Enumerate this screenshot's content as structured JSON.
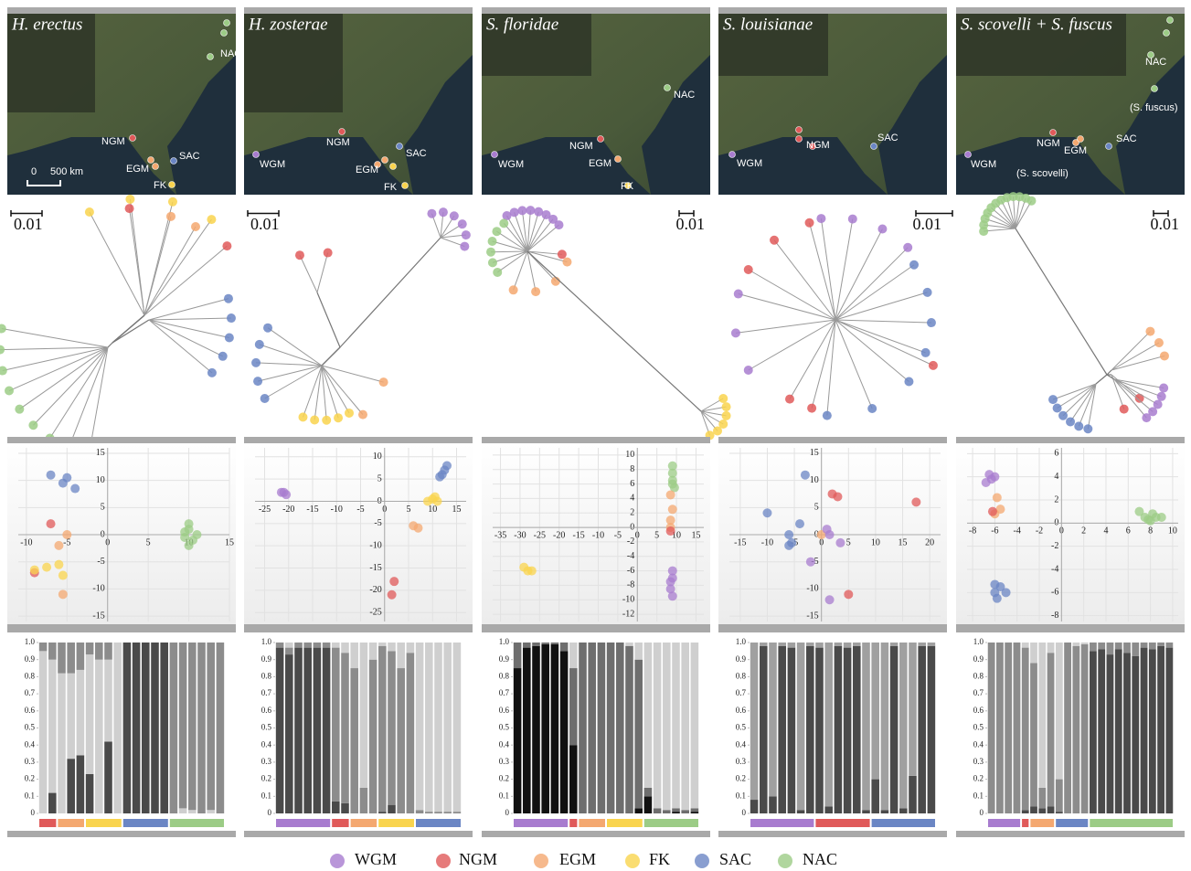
{
  "panels": [
    {
      "map": {
        "title": "H. erectus",
        "labels": [
          "NAC",
          "NGM",
          "EGM",
          "SAC",
          "FK",
          "0",
          "500 km"
        ]
      },
      "tree": {
        "scale": "0.01"
      }
    },
    {
      "map": {
        "title": "H. zosterae",
        "labels": [
          "WGM",
          "NGM",
          "EGM",
          "SAC",
          "FK"
        ]
      },
      "tree": {
        "scale": "0.01"
      }
    },
    {
      "map": {
        "title": "S. floridae",
        "labels": [
          "NAC",
          "NGM",
          "WGM",
          "EGM",
          "FK"
        ]
      },
      "tree": {
        "scale": "0.01"
      }
    },
    {
      "map": {
        "title": "S. louisianae",
        "labels": [
          "NGM",
          "SAC",
          "WGM"
        ]
      },
      "tree": {
        "scale": "0.01"
      }
    },
    {
      "map": {
        "title": "S. scovelli + S. fuscus",
        "labels": [
          "NAC",
          "(S. fuscus)",
          "NGM",
          "EGM",
          "SAC",
          "WGM",
          "(S. scovelli)"
        ]
      },
      "tree": {
        "scale": "0.01"
      }
    }
  ],
  "chart_data": [
    {
      "type": "scatter",
      "grid": true,
      "xlim": [
        -11,
        15
      ],
      "ylim": [
        -16,
        16
      ],
      "xticks": [
        -10,
        -5,
        0,
        5,
        10,
        15
      ],
      "yticks": [
        -15,
        -10,
        -5,
        0,
        5,
        10,
        15
      ],
      "series": [
        {
          "name": "SAC",
          "color": "#6b86c4",
          "x": [
            -7,
            -5.5,
            -5,
            -4
          ],
          "y": [
            11,
            9.5,
            10.5,
            8.5
          ]
        },
        {
          "name": "NGM",
          "color": "#e05a5a",
          "x": [
            -7,
            -9
          ],
          "y": [
            2,
            -7
          ]
        },
        {
          "name": "EGM",
          "color": "#f4a870",
          "x": [
            -5,
            -6,
            -5.5
          ],
          "y": [
            0,
            -2,
            -11
          ]
        },
        {
          "name": "FK",
          "color": "#f9d44e",
          "x": [
            -9,
            -7.5,
            -6,
            -5.5
          ],
          "y": [
            -6.5,
            -6,
            -5.5,
            -7.5
          ]
        },
        {
          "name": "NAC",
          "color": "#9ccc86",
          "x": [
            10,
            10,
            9.5,
            10.5,
            10,
            11,
            9.5
          ],
          "y": [
            1,
            2,
            -0.5,
            -1,
            -2,
            0,
            0.5
          ]
        }
      ]
    },
    {
      "type": "scatter",
      "grid": true,
      "xlim": [
        -27,
        17
      ],
      "ylim": [
        -27,
        12
      ],
      "xticks": [
        -25,
        -20,
        -15,
        -10,
        -5,
        0,
        5,
        10,
        15
      ],
      "yticks": [
        -25,
        -20,
        -15,
        -10,
        -5,
        0,
        5,
        10
      ],
      "series": [
        {
          "name": "WGM",
          "color": "#a87ccf",
          "x": [
            -21,
            -20.5,
            -21.5
          ],
          "y": [
            2,
            1.5,
            2
          ]
        },
        {
          "name": "SAC",
          "color": "#6b86c4",
          "x": [
            12,
            12.5,
            13,
            11.5
          ],
          "y": [
            6,
            7,
            8,
            5.5
          ]
        },
        {
          "name": "FK",
          "color": "#f9d44e",
          "x": [
            9,
            10,
            11,
            10.5
          ],
          "y": [
            0,
            0.5,
            0,
            1
          ]
        },
        {
          "name": "EGM",
          "color": "#f4a870",
          "x": [
            6,
            7
          ],
          "y": [
            -5.5,
            -6
          ]
        },
        {
          "name": "NGM",
          "color": "#e05a5a",
          "x": [
            2,
            1.5
          ],
          "y": [
            -18,
            -21
          ]
        }
      ]
    },
    {
      "type": "scatter",
      "grid": true,
      "xlim": [
        -37,
        17
      ],
      "ylim": [
        -13,
        11
      ],
      "xticks": [
        -35,
        -30,
        -25,
        -20,
        -15,
        -10,
        -5,
        0,
        5,
        10,
        15
      ],
      "yticks": [
        -12,
        -10,
        -8,
        -6,
        -4,
        -2,
        0,
        2,
        4,
        6,
        8,
        10
      ],
      "series": [
        {
          "name": "FK",
          "color": "#f9d44e",
          "x": [
            -29,
            -28,
            -27
          ],
          "y": [
            -5.5,
            -6,
            -6
          ]
        },
        {
          "name": "NAC",
          "color": "#9ccc86",
          "x": [
            9,
            9,
            9,
            9.5,
            9
          ],
          "y": [
            8.5,
            7.5,
            6.5,
            5.5,
            6
          ]
        },
        {
          "name": "EGM",
          "color": "#f4a870",
          "x": [
            9,
            8.5,
            8.5,
            8.5
          ],
          "y": [
            2.5,
            4.5,
            1,
            0
          ]
        },
        {
          "name": "NGM",
          "color": "#e05a5a",
          "x": [
            8.5
          ],
          "y": [
            -0.5
          ]
        },
        {
          "name": "WGM",
          "color": "#a87ccf",
          "x": [
            9,
            8.5,
            8.5,
            9,
            9
          ],
          "y": [
            -6,
            -7.5,
            -8.5,
            -9.5,
            -7
          ]
        }
      ]
    },
    {
      "type": "scatter",
      "grid": true,
      "xlim": [
        -17,
        22
      ],
      "ylim": [
        -16,
        16
      ],
      "xticks": [
        -15,
        -10,
        -5,
        0,
        5,
        10,
        15,
        20
      ],
      "yticks": [
        -15,
        -10,
        -5,
        0,
        5,
        10,
        15
      ],
      "series": [
        {
          "name": "SAC",
          "color": "#6b86c4",
          "x": [
            -3,
            -10,
            -4,
            -6,
            -5.5,
            -6
          ],
          "y": [
            11,
            4,
            2,
            0,
            -1.5,
            -2
          ]
        },
        {
          "name": "NGM",
          "color": "#e05a5a",
          "x": [
            2,
            3,
            17.5,
            5
          ],
          "y": [
            7.5,
            7,
            6,
            -11
          ]
        },
        {
          "name": "EGM",
          "color": "#f4a870",
          "x": [
            0
          ],
          "y": [
            0
          ]
        },
        {
          "name": "WGM",
          "color": "#a87ccf",
          "x": [
            1,
            1.5,
            3.5,
            -2,
            1.5
          ],
          "y": [
            1,
            0,
            -1.5,
            -5,
            -12
          ]
        }
      ]
    },
    {
      "type": "scatter",
      "grid": true,
      "xlim": [
        -8.5,
        10.5
      ],
      "ylim": [
        -8.5,
        6.5
      ],
      "xticks": [
        -8,
        -6,
        -4,
        -2,
        0,
        2,
        4,
        6,
        8,
        10
      ],
      "yticks": [
        -8,
        -6,
        -4,
        -2,
        0,
        2,
        4,
        6
      ],
      "series": [
        {
          "name": "WGM",
          "color": "#a87ccf",
          "x": [
            -6.5,
            -6.3,
            -6.8,
            -6
          ],
          "y": [
            4.2,
            3.8,
            3.5,
            4
          ]
        },
        {
          "name": "EGM",
          "color": "#f4a870",
          "x": [
            -5.8,
            -5.5,
            -6
          ],
          "y": [
            2.2,
            1.2,
            0.8
          ]
        },
        {
          "name": "NGM",
          "color": "#e05a5a",
          "x": [
            -6.2
          ],
          "y": [
            1
          ]
        },
        {
          "name": "SAC",
          "color": "#6b86c4",
          "x": [
            -6,
            -5.5,
            -5,
            -5.8,
            -6
          ],
          "y": [
            -5.3,
            -5.5,
            -6,
            -6.5,
            -6
          ]
        },
        {
          "name": "NAC",
          "color": "#9ccc86",
          "x": [
            7,
            7.5,
            8,
            8.5,
            9,
            8.2,
            7.8
          ],
          "y": [
            1,
            0.5,
            0.2,
            0.5,
            0.5,
            0.8,
            0.3
          ]
        }
      ]
    },
    {
      "type": "bar",
      "ylim": [
        0,
        1
      ],
      "yticks": [
        0,
        0.1,
        0.2,
        0.3,
        0.4,
        0.5,
        0.6,
        0.7,
        0.8,
        0.9,
        {
          "value": 1,
          "label": "1.0"
        }
      ],
      "series": [
        {
          "color": "#4a4a4a",
          "values": [
            0,
            0.12,
            0,
            0.32,
            0.34,
            0.23,
            0,
            0.42,
            0,
            1,
            1,
            1,
            1,
            1,
            0,
            0,
            0,
            0,
            0,
            0
          ]
        },
        {
          "color": "#cfcfcf",
          "values": [
            0.95,
            0.78,
            0.82,
            0.5,
            0.5,
            0.7,
            0.9,
            0.48,
            1,
            0,
            0,
            0,
            0,
            0,
            0,
            0.03,
            0.02,
            0,
            0.02,
            0
          ]
        },
        {
          "color": "#8c8c8c",
          "values": [
            0.05,
            0.1,
            0.18,
            0.18,
            0.16,
            0.07,
            0.1,
            0.1,
            0,
            0,
            0,
            0,
            0,
            0,
            1,
            0.97,
            0.98,
            1,
            0.98,
            1
          ]
        }
      ],
      "groups": [
        {
          "name": "NGM",
          "count": 2
        },
        {
          "name": "EGM",
          "count": 3
        },
        {
          "name": "FK",
          "count": 4
        },
        {
          "name": "SAC",
          "count": 5
        },
        {
          "name": "NAC",
          "count": 6
        }
      ]
    },
    {
      "type": "bar",
      "ylim": [
        0,
        1
      ],
      "yticks": [
        0,
        0.1,
        0.2,
        0.3,
        0.4,
        0.5,
        0.6,
        0.7,
        0.8,
        0.9,
        {
          "value": 1,
          "label": "1.0"
        }
      ],
      "series": [
        {
          "color": "#4a4a4a",
          "values": [
            0.97,
            0.93,
            0.97,
            0.97,
            0.97,
            0.97,
            0.07,
            0.06,
            0,
            0,
            0,
            0.01,
            0.05,
            0,
            0,
            0,
            0,
            0,
            0,
            0
          ]
        },
        {
          "color": "#8c8c8c",
          "values": [
            0.03,
            0.04,
            0.03,
            0.03,
            0.03,
            0.03,
            0.9,
            0.88,
            0.85,
            0.15,
            0.9,
            0.97,
            0.9,
            0.85,
            0.94,
            0.02,
            0.01,
            0.01,
            0.01,
            0.01
          ]
        },
        {
          "color": "#cfcfcf",
          "values": [
            0,
            0.03,
            0,
            0,
            0,
            0,
            0.03,
            0.06,
            0.15,
            0.85,
            0.1,
            0.02,
            0.05,
            0.15,
            0.06,
            0.98,
            0.99,
            0.99,
            0.99,
            0.99
          ]
        }
      ],
      "groups": [
        {
          "name": "WGM",
          "count": 6
        },
        {
          "name": "NGM",
          "count": 2
        },
        {
          "name": "EGM",
          "count": 3
        },
        {
          "name": "FK",
          "count": 4
        },
        {
          "name": "SAC",
          "count": 5
        }
      ]
    },
    {
      "type": "bar",
      "ylim": [
        0,
        1
      ],
      "yticks": [
        0,
        0.1,
        0.2,
        0.3,
        0.4,
        0.5,
        0.6,
        0.7,
        0.8,
        0.9,
        {
          "value": 1,
          "label": "1.0"
        }
      ],
      "series": [
        {
          "color": "#111111",
          "values": [
            0.85,
            0.97,
            0.98,
            0.99,
            0.99,
            0.95,
            0.4,
            0,
            0,
            0,
            0,
            0,
            0,
            0.03,
            0.1,
            0,
            0,
            0.01,
            0,
            0.01
          ]
        },
        {
          "color": "#6e6e6e",
          "values": [
            0.15,
            0.03,
            0.02,
            0.01,
            0.01,
            0.05,
            0.45,
            1,
            1,
            1,
            1,
            1,
            0.98,
            0.87,
            0.05,
            0.03,
            0.02,
            0.02,
            0.02,
            0.02
          ]
        },
        {
          "color": "#cfcfcf",
          "values": [
            0,
            0,
            0,
            0,
            0,
            0,
            0.15,
            0,
            0,
            0,
            0,
            0,
            0.02,
            0.1,
            0.85,
            0.97,
            0.98,
            0.97,
            0.98,
            0.97
          ]
        }
      ],
      "groups": [
        {
          "name": "WGM",
          "count": 6
        },
        {
          "name": "NGM",
          "count": 1
        },
        {
          "name": "EGM",
          "count": 3
        },
        {
          "name": "FK",
          "count": 4
        },
        {
          "name": "NAC",
          "count": 6
        }
      ]
    },
    {
      "type": "bar",
      "ylim": [
        0,
        1
      ],
      "yticks": [
        0,
        0.1,
        0.2,
        0.3,
        0.4,
        0.5,
        0.6,
        0.7,
        0.8,
        0.9,
        {
          "value": 1,
          "label": "1.0"
        }
      ],
      "series": [
        {
          "color": "#4a4a4a",
          "values": [
            0.08,
            0.98,
            0.1,
            0.98,
            0.97,
            0.02,
            0.98,
            0.97,
            0.04,
            0.98,
            0.97,
            0.98,
            0.02,
            0.2,
            0.02,
            0.98,
            0.03,
            0.22,
            0.98,
            0.98
          ]
        },
        {
          "color": "#a0a0a0",
          "values": [
            0.92,
            0.02,
            0.9,
            0.02,
            0.03,
            0.98,
            0.02,
            0.03,
            0.96,
            0.02,
            0.03,
            0.02,
            0.98,
            0.8,
            0.98,
            0.02,
            0.97,
            0.78,
            0.02,
            0.02
          ]
        }
      ],
      "groups": [
        {
          "name": "WGM",
          "count": 7
        },
        {
          "name": "NGM",
          "count": 6
        },
        {
          "name": "SAC",
          "count": 7
        }
      ]
    },
    {
      "type": "bar",
      "ylim": [
        0,
        1
      ],
      "yticks": [
        0,
        0.1,
        0.2,
        0.3,
        0.4,
        0.5,
        0.6,
        0.7,
        0.8,
        0.9,
        {
          "value": 1,
          "label": "1.0"
        }
      ],
      "series": [
        {
          "color": "#4a4a4a",
          "values": [
            0,
            0,
            0,
            0,
            0.02,
            0.04,
            0.03,
            0.04,
            0.01,
            0,
            0,
            0,
            0.95,
            0.96,
            0.93,
            0.96,
            0.94,
            0.92,
            0.97,
            0.96,
            0.98,
            0.97
          ]
        },
        {
          "color": "#8c8c8c",
          "values": [
            1,
            1,
            1,
            1,
            0.95,
            0.84,
            0.12,
            0.9,
            0.19,
            1,
            0.98,
            0.99,
            0.05,
            0.04,
            0.07,
            0.04,
            0.06,
            0.08,
            0.03,
            0.04,
            0.02,
            0.03
          ]
        },
        {
          "color": "#cfcfcf",
          "values": [
            0,
            0,
            0,
            0,
            0.03,
            0.12,
            0.85,
            0.06,
            0.8,
            0,
            0.02,
            0.01,
            0,
            0,
            0,
            0,
            0,
            0,
            0,
            0,
            0,
            0
          ]
        }
      ],
      "groups": [
        {
          "name": "WGM",
          "count": 4
        },
        {
          "name": "NGM",
          "count": 1
        },
        {
          "name": "EGM",
          "count": 3
        },
        {
          "name": "SAC",
          "count": 4
        },
        {
          "name": "NAC",
          "count": 10
        }
      ]
    }
  ],
  "legend": [
    {
      "name": "WGM",
      "color": "#a87ccf"
    },
    {
      "name": "NGM",
      "color": "#e05a5a"
    },
    {
      "name": "EGM",
      "color": "#f4a870"
    },
    {
      "name": "FK",
      "color": "#f9d44e"
    },
    {
      "name": "SAC",
      "color": "#6b86c4"
    },
    {
      "name": "NAC",
      "color": "#9ccc86"
    }
  ]
}
